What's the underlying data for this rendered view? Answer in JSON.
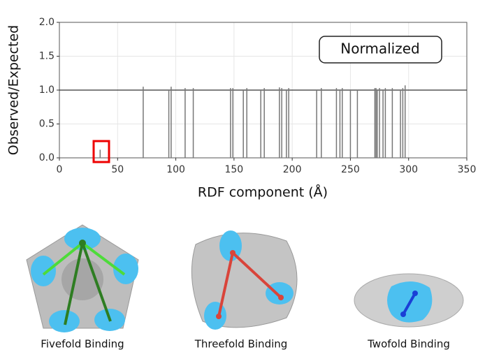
{
  "chart_data": {
    "type": "bar",
    "ylabel": "Observed/Expected",
    "xlabel": "RDF component (Å)",
    "annotation": "Normalized",
    "x": [
      35,
      72,
      94,
      96,
      108,
      115,
      147,
      149,
      158,
      161,
      173,
      176,
      189,
      191,
      195,
      197,
      221,
      225,
      238,
      241,
      243,
      250,
      256,
      271,
      272,
      273,
      275,
      278,
      280,
      286,
      293,
      295,
      297
    ],
    "values": [
      0.12,
      1.05,
      1.0,
      1.05,
      1.03,
      1.03,
      1.03,
      1.03,
      1.0,
      1.03,
      1.0,
      1.03,
      1.04,
      1.03,
      1.0,
      1.03,
      1.0,
      1.03,
      1.03,
      1.0,
      1.03,
      1.0,
      1.0,
      1.03,
      1.03,
      1.0,
      1.03,
      1.0,
      1.03,
      1.03,
      1.0,
      1.03,
      1.07
    ],
    "color": "#777777",
    "reference_line": 1,
    "xlim": [
      0,
      350
    ],
    "xticks": [
      0,
      50,
      100,
      150,
      200,
      250,
      300,
      350
    ],
    "ylim": [
      0,
      2
    ],
    "yticks": [
      {
        "value": 0,
        "label": "0.0"
      },
      0.5,
      {
        "value": 1,
        "label": "1.0"
      },
      1.5,
      {
        "value": 2,
        "label": "2.0"
      }
    ],
    "grid": true
  },
  "panels": [
    {
      "caption": "Fivefold Binding"
    },
    {
      "caption": "Threefold Binding"
    },
    {
      "caption": "Twofold Binding"
    }
  ]
}
